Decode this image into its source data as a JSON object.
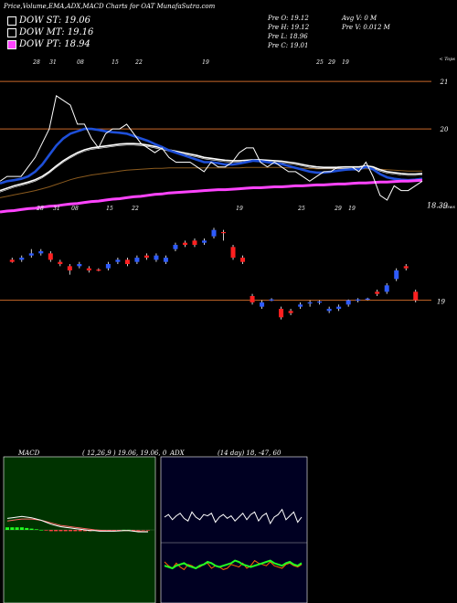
{
  "header": {
    "title": "Price,Volume,EMA,ADX,MACD Charts for OAT MunafaSutra.com"
  },
  "legend": [
    {
      "label": "DOW ST: 19.06",
      "color": "#ffffff"
    },
    {
      "label": "DOW MT: 19.16",
      "color": "#ffffff"
    },
    {
      "label": "DOW PT: 18.94",
      "color": "#ff44ff"
    }
  ],
  "quote": {
    "pre_o": "Pre   O: 19.12",
    "pre_h": "Pre   H: 19.12",
    "pre_l": "Pre   L: 18.96",
    "pre_c": "Pre   C: 19.01",
    "avg_v": "Avg V: 0   M",
    "pre_v": "Pre   V: 0.012   M"
  },
  "labels": {
    "tops": "< Tops",
    "lows": "< Lows"
  },
  "chart_data": [
    {
      "type": "line",
      "name": "price-ema-panel",
      "x": [
        1,
        2,
        3,
        4,
        5,
        6,
        7,
        8,
        9,
        10,
        11,
        12,
        13,
        14,
        15,
        16,
        17,
        18,
        19,
        20,
        21,
        22,
        23,
        24,
        25,
        26,
        27,
        28,
        29,
        30,
        31,
        32,
        33,
        34,
        35,
        36,
        37,
        38,
        39,
        40,
        41,
        42,
        43,
        44,
        45,
        46,
        47,
        48,
        49,
        50,
        51,
        52,
        53,
        54,
        55,
        56,
        57,
        58,
        59,
        60,
        61
      ],
      "close": [
        18.9,
        19.0,
        19.0,
        19.0,
        19.2,
        19.4,
        19.7,
        20.0,
        20.7,
        20.6,
        20.5,
        20.1,
        20.1,
        19.8,
        19.6,
        19.9,
        20.0,
        20.0,
        20.1,
        19.9,
        19.7,
        19.6,
        19.5,
        19.6,
        19.4,
        19.3,
        19.3,
        19.3,
        19.2,
        19.1,
        19.3,
        19.2,
        19.2,
        19.3,
        19.5,
        19.6,
        19.6,
        19.3,
        19.2,
        19.3,
        19.2,
        19.1,
        19.1,
        19.0,
        18.9,
        19.0,
        19.1,
        19.1,
        19.2,
        19.2,
        19.2,
        19.1,
        19.3,
        19.0,
        18.6,
        18.5,
        18.8,
        18.7,
        18.7,
        18.8,
        18.9
      ],
      "ema_short": [
        18.85,
        18.9,
        18.92,
        18.95,
        19.0,
        19.1,
        19.25,
        19.45,
        19.65,
        19.8,
        19.9,
        19.95,
        20.0,
        20.0,
        19.98,
        19.95,
        19.93,
        19.92,
        19.9,
        19.85,
        19.8,
        19.75,
        19.68,
        19.62,
        19.55,
        19.5,
        19.45,
        19.4,
        19.35,
        19.3,
        19.3,
        19.28,
        19.25,
        19.25,
        19.27,
        19.3,
        19.33,
        19.32,
        19.3,
        19.28,
        19.26,
        19.22,
        19.18,
        19.14,
        19.1,
        19.08,
        19.08,
        19.1,
        19.12,
        19.14,
        19.15,
        19.15,
        19.2,
        19.15,
        19.05,
        18.98,
        18.95,
        18.93,
        18.92,
        18.93,
        18.95
      ],
      "ema_mid": [
        18.7,
        18.75,
        18.8,
        18.84,
        18.88,
        18.93,
        19.0,
        19.1,
        19.22,
        19.33,
        19.42,
        19.5,
        19.56,
        19.6,
        19.62,
        19.64,
        19.66,
        19.68,
        19.69,
        19.69,
        19.68,
        19.66,
        19.63,
        19.6,
        19.56,
        19.53,
        19.5,
        19.47,
        19.44,
        19.4,
        19.38,
        19.36,
        19.34,
        19.33,
        19.33,
        19.34,
        19.35,
        19.35,
        19.34,
        19.33,
        19.32,
        19.3,
        19.28,
        19.25,
        19.22,
        19.2,
        19.19,
        19.19,
        19.19,
        19.2,
        19.2,
        19.2,
        19.22,
        19.2,
        19.14,
        19.1,
        19.08,
        19.06,
        19.05,
        19.05,
        19.06
      ],
      "ema_long": [
        18.55,
        18.58,
        18.61,
        18.64,
        18.67,
        18.7,
        18.74,
        18.78,
        18.83,
        18.88,
        18.93,
        18.97,
        19.0,
        19.03,
        19.05,
        19.07,
        19.09,
        19.11,
        19.13,
        19.14,
        19.15,
        19.16,
        19.17,
        19.17,
        19.18,
        19.18,
        19.18,
        19.18,
        19.18,
        19.18,
        19.18,
        19.18,
        19.18,
        19.18,
        19.18,
        19.19,
        19.19,
        19.19,
        19.19,
        19.19,
        19.19,
        19.18,
        19.18,
        19.17,
        19.17,
        19.16,
        19.16,
        19.16,
        19.16,
        19.16,
        19.16,
        19.16,
        19.16,
        19.16,
        19.15,
        19.14,
        19.13,
        19.12,
        19.11,
        19.11,
        19.11
      ],
      "ema_pt": [
        18.25,
        18.27,
        18.28,
        18.3,
        18.32,
        18.33,
        18.35,
        18.37,
        18.38,
        18.4,
        18.42,
        18.43,
        18.45,
        18.47,
        18.48,
        18.5,
        18.52,
        18.53,
        18.55,
        18.57,
        18.58,
        18.6,
        18.62,
        18.63,
        18.65,
        18.66,
        18.67,
        18.68,
        18.69,
        18.7,
        18.71,
        18.72,
        18.72,
        18.73,
        18.74,
        18.75,
        18.76,
        18.76,
        18.77,
        18.78,
        18.78,
        18.79,
        18.8,
        18.8,
        18.81,
        18.82,
        18.82,
        18.83,
        18.84,
        18.84,
        18.85,
        18.86,
        18.86,
        18.87,
        18.88,
        18.88,
        18.89,
        18.9,
        18.9,
        18.91,
        18.92
      ],
      "ylim": [
        18.0,
        21.6
      ],
      "level_lines": [
        21,
        20
      ],
      "tick_labels": [
        "21",
        "20"
      ],
      "price_labels": [
        {
          "value": 18.39,
          "text": "18.39"
        }
      ],
      "top_date_labels": [
        "28",
        "31",
        "08",
        "15",
        "22",
        "19",
        "25",
        "29",
        "19"
      ],
      "low_date_labels": [
        "28",
        "31",
        "08",
        "15",
        "22",
        "19",
        "25",
        "29",
        "19"
      ]
    },
    {
      "type": "candlestick",
      "name": "candles-panel",
      "ylim": [
        18.0,
        21.0
      ],
      "level_line": 19.1,
      "tick_label": "19",
      "candles": [
        {
          "o": 20.0,
          "c": 20.05,
          "h": 20.1,
          "l": 19.98,
          "up": false
        },
        {
          "o": 20.05,
          "c": 20.1,
          "h": 20.15,
          "l": 20.0,
          "up": true
        },
        {
          "o": 20.15,
          "c": 20.2,
          "h": 20.3,
          "l": 20.1,
          "up": true
        },
        {
          "o": 20.25,
          "c": 20.2,
          "h": 20.3,
          "l": 20.15,
          "up": true
        },
        {
          "o": 20.2,
          "c": 20.05,
          "h": 20.25,
          "l": 20.0,
          "up": false
        },
        {
          "o": 19.95,
          "c": 20.0,
          "h": 20.05,
          "l": 19.9,
          "up": false
        },
        {
          "o": 19.8,
          "c": 19.9,
          "h": 19.95,
          "l": 19.7,
          "up": false
        },
        {
          "o": 19.9,
          "c": 19.95,
          "h": 20.0,
          "l": 19.85,
          "up": true
        },
        {
          "o": 19.85,
          "c": 19.8,
          "h": 19.9,
          "l": 19.75,
          "up": false
        },
        {
          "o": 19.8,
          "c": 19.82,
          "h": 19.85,
          "l": 19.78,
          "up": false
        },
        {
          "o": 19.85,
          "c": 19.95,
          "h": 20.0,
          "l": 19.8,
          "up": true
        },
        {
          "o": 20.0,
          "c": 20.05,
          "h": 20.1,
          "l": 19.95,
          "up": true
        },
        {
          "o": 20.05,
          "c": 19.95,
          "h": 20.1,
          "l": 19.9,
          "up": false
        },
        {
          "o": 20.0,
          "c": 20.1,
          "h": 20.15,
          "l": 19.95,
          "up": true
        },
        {
          "o": 20.1,
          "c": 20.15,
          "h": 20.2,
          "l": 20.05,
          "up": false
        },
        {
          "o": 20.15,
          "c": 20.05,
          "h": 20.2,
          "l": 20.0,
          "up": true
        },
        {
          "o": 20.1,
          "c": 20.0,
          "h": 20.15,
          "l": 19.95,
          "up": true
        },
        {
          "o": 20.3,
          "c": 20.4,
          "h": 20.45,
          "l": 20.25,
          "up": true
        },
        {
          "o": 20.45,
          "c": 20.4,
          "h": 20.5,
          "l": 20.35,
          "up": false
        },
        {
          "o": 20.4,
          "c": 20.5,
          "h": 20.55,
          "l": 20.35,
          "up": false
        },
        {
          "o": 20.5,
          "c": 20.45,
          "h": 20.55,
          "l": 20.4,
          "up": true
        },
        {
          "o": 20.6,
          "c": 20.75,
          "h": 20.8,
          "l": 20.55,
          "up": true
        },
        {
          "o": 20.7,
          "c": 20.68,
          "h": 20.75,
          "l": 20.5,
          "up": false
        },
        {
          "o": 20.35,
          "c": 20.1,
          "h": 20.4,
          "l": 20.05,
          "up": false
        },
        {
          "o": 20.1,
          "c": 20.0,
          "h": 20.15,
          "l": 19.95,
          "up": false
        },
        {
          "o": 19.2,
          "c": 19.05,
          "h": 19.25,
          "l": 19.0,
          "up": false
        },
        {
          "o": 19.05,
          "c": 18.95,
          "h": 19.1,
          "l": 18.9,
          "up": true
        },
        {
          "o": 19.1,
          "c": 19.12,
          "h": 19.15,
          "l": 19.08,
          "up": true
        },
        {
          "o": 18.9,
          "c": 18.7,
          "h": 18.95,
          "l": 18.65,
          "up": false
        },
        {
          "o": 18.8,
          "c": 18.85,
          "h": 18.9,
          "l": 18.75,
          "up": false
        },
        {
          "o": 18.95,
          "c": 19.0,
          "h": 19.05,
          "l": 18.9,
          "up": true
        },
        {
          "o": 19.05,
          "c": 19.05,
          "h": 19.1,
          "l": 18.95,
          "up": true
        },
        {
          "o": 19.05,
          "c": 19.07,
          "h": 19.1,
          "l": 19.0,
          "up": true
        },
        {
          "o": 18.85,
          "c": 18.9,
          "h": 18.95,
          "l": 18.8,
          "up": true
        },
        {
          "o": 18.9,
          "c": 18.95,
          "h": 19.0,
          "l": 18.85,
          "up": true
        },
        {
          "o": 19.0,
          "c": 19.1,
          "h": 19.12,
          "l": 18.95,
          "up": true
        },
        {
          "o": 19.1,
          "c": 19.12,
          "h": 19.15,
          "l": 19.05,
          "up": true
        },
        {
          "o": 19.12,
          "c": 19.14,
          "h": 19.16,
          "l": 19.1,
          "up": true
        },
        {
          "o": 19.25,
          "c": 19.3,
          "h": 19.35,
          "l": 19.2,
          "up": false
        },
        {
          "o": 19.3,
          "c": 19.45,
          "h": 19.5,
          "l": 19.25,
          "up": true
        },
        {
          "o": 19.6,
          "c": 19.8,
          "h": 19.85,
          "l": 19.55,
          "up": true
        },
        {
          "o": 19.85,
          "c": 19.9,
          "h": 19.95,
          "l": 19.8,
          "up": false
        },
        {
          "o": 19.3,
          "c": 19.1,
          "h": 19.35,
          "l": 19.05,
          "up": false
        }
      ]
    },
    {
      "type": "line",
      "name": "macd-panel",
      "title": "MACD",
      "params": "( 12,26,9 ) 19.06,  19.06,  0",
      "macd": [
        0.9,
        0.95,
        1.0,
        1.05,
        1.0,
        0.95,
        0.85,
        0.75,
        0.6,
        0.45,
        0.35,
        0.25,
        0.2,
        0.15,
        0.1,
        0.05,
        0.0,
        -0.05,
        -0.05,
        -0.1,
        -0.1,
        -0.1,
        -0.1,
        -0.08,
        -0.05,
        -0.05,
        -0.1,
        -0.15,
        -0.15,
        -0.15
      ],
      "signal": [
        0.7,
        0.75,
        0.8,
        0.85,
        0.85,
        0.85,
        0.8,
        0.75,
        0.65,
        0.55,
        0.45,
        0.35,
        0.3,
        0.25,
        0.2,
        0.15,
        0.1,
        0.05,
        0.0,
        -0.03,
        -0.05,
        -0.06,
        -0.07,
        -0.07,
        -0.06,
        -0.06,
        -0.08,
        -0.1,
        -0.12,
        -0.13
      ],
      "hist": [
        0.2,
        0.2,
        0.2,
        0.2,
        0.15,
        0.1,
        0.05,
        0.0,
        -0.05,
        -0.1,
        -0.1,
        -0.1,
        -0.1,
        -0.1,
        -0.1,
        -0.1,
        -0.1,
        -0.1,
        -0.05,
        -0.07,
        -0.05,
        -0.04,
        -0.03,
        -0.01,
        0.01,
        0.01,
        -0.02,
        -0.05,
        -0.03,
        -0.02
      ]
    },
    {
      "type": "line",
      "name": "adx-panel",
      "title": "ADX",
      "params": "(14 day) 18,  -47,  60",
      "di_plus": [
        60,
        62,
        58,
        61,
        63,
        59,
        57,
        64,
        60,
        58,
        62,
        61,
        63,
        56,
        60,
        62,
        59,
        61,
        57,
        60,
        63,
        58,
        62,
        64,
        57,
        61,
        63,
        55,
        60,
        62,
        66,
        58,
        61,
        64,
        56,
        60
      ],
      "di_minus": [
        25,
        22,
        20,
        24,
        21,
        19,
        23,
        22,
        20,
        21,
        23,
        24,
        20,
        22,
        21,
        19,
        20,
        23,
        22,
        21,
        24,
        20,
        22,
        26,
        24,
        23,
        22,
        25,
        22,
        21,
        20,
        23,
        24,
        22,
        21,
        23
      ],
      "adx": [
        22,
        21,
        20,
        22,
        23,
        24,
        22,
        21,
        20,
        22,
        23,
        25,
        24,
        22,
        21,
        22,
        23,
        24,
        26,
        25,
        23,
        22,
        21,
        22,
        23,
        24,
        25,
        26,
        24,
        23,
        22,
        24,
        25,
        23,
        22,
        24
      ],
      "ylim": [
        0,
        100
      ]
    }
  ]
}
